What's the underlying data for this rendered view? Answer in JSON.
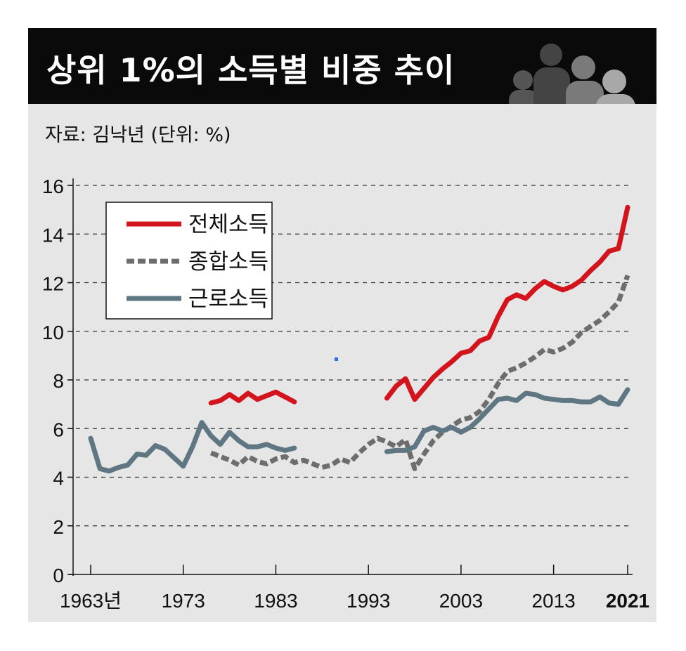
{
  "header": {
    "title": "상위 1%의 소득별 비중 추이",
    "source": "자료: 김낙년 (단위: %)",
    "icon": "people-silhouette-icon"
  },
  "chart_data": {
    "type": "line",
    "ylim": [
      0,
      16
    ],
    "xlim": [
      1963,
      2021
    ],
    "y_ticks": [
      0,
      2,
      4,
      6,
      8,
      10,
      12,
      14,
      16
    ],
    "x_tick_labels": [
      "1963년",
      "1973",
      "1983",
      "1993",
      "2003",
      "2013",
      "2021"
    ],
    "x_tick_values": [
      1963,
      1973,
      1983,
      1993,
      2003,
      2013,
      2021
    ],
    "grid": true,
    "legend_position": "top-left",
    "series": [
      {
        "name": "전체소득",
        "color": "#d4141c",
        "style": "solid",
        "segments": [
          [
            [
              1976,
              7.05
            ],
            [
              1977,
              7.15
            ],
            [
              1978,
              7.4
            ],
            [
              1979,
              7.15
            ],
            [
              1980,
              7.45
            ],
            [
              1981,
              7.2
            ],
            [
              1982,
              7.35
            ],
            [
              1983,
              7.5
            ],
            [
              1984,
              7.3
            ],
            [
              1985,
              7.1
            ]
          ],
          [
            [
              1995,
              7.25
            ],
            [
              1996,
              7.75
            ],
            [
              1997,
              8.05
            ],
            [
              1998,
              7.2
            ],
            [
              1999,
              7.65
            ],
            [
              2000,
              8.1
            ],
            [
              2001,
              8.45
            ],
            [
              2002,
              8.75
            ],
            [
              2003,
              9.1
            ],
            [
              2004,
              9.2
            ],
            [
              2005,
              9.6
            ],
            [
              2006,
              9.75
            ],
            [
              2007,
              10.6
            ],
            [
              2008,
              11.3
            ],
            [
              2009,
              11.5
            ],
            [
              2010,
              11.35
            ],
            [
              2011,
              11.75
            ],
            [
              2012,
              12.05
            ],
            [
              2013,
              11.85
            ],
            [
              2014,
              11.7
            ],
            [
              2015,
              11.85
            ],
            [
              2016,
              12.1
            ],
            [
              2017,
              12.5
            ],
            [
              2018,
              12.85
            ],
            [
              2019,
              13.3
            ],
            [
              2020,
              13.4
            ],
            [
              2021,
              15.1
            ]
          ]
        ]
      },
      {
        "name": "종합소득",
        "color": "#6d6d6d",
        "style": "dashed",
        "segments": [
          [
            [
              1976,
              5.0
            ],
            [
              1977,
              4.85
            ],
            [
              1978,
              4.7
            ],
            [
              1979,
              4.5
            ],
            [
              1980,
              4.85
            ],
            [
              1981,
              4.65
            ],
            [
              1982,
              4.55
            ],
            [
              1983,
              4.75
            ],
            [
              1984,
              4.85
            ],
            [
              1985,
              4.6
            ],
            [
              1986,
              4.7
            ],
            [
              1987,
              4.55
            ],
            [
              1988,
              4.4
            ],
            [
              1989,
              4.5
            ],
            [
              1990,
              4.75
            ],
            [
              1991,
              4.6
            ],
            [
              1992,
              5.0
            ],
            [
              1993,
              5.35
            ],
            [
              1994,
              5.6
            ],
            [
              1995,
              5.45
            ],
            [
              1996,
              5.25
            ],
            [
              1997,
              5.55
            ],
            [
              1998,
              4.35
            ],
            [
              1999,
              4.95
            ],
            [
              2000,
              5.5
            ],
            [
              2001,
              5.85
            ],
            [
              2002,
              6.1
            ],
            [
              2003,
              6.35
            ],
            [
              2004,
              6.45
            ],
            [
              2005,
              6.7
            ],
            [
              2006,
              7.2
            ],
            [
              2007,
              7.85
            ],
            [
              2008,
              8.35
            ],
            [
              2009,
              8.5
            ],
            [
              2010,
              8.7
            ],
            [
              2011,
              8.95
            ],
            [
              2012,
              9.25
            ],
            [
              2013,
              9.15
            ],
            [
              2014,
              9.3
            ],
            [
              2015,
              9.55
            ],
            [
              2016,
              9.95
            ],
            [
              2017,
              10.2
            ],
            [
              2018,
              10.45
            ],
            [
              2019,
              10.8
            ],
            [
              2020,
              11.2
            ],
            [
              2021,
              12.3
            ]
          ]
        ]
      },
      {
        "name": "근로소득",
        "color": "#5f7782",
        "style": "solid",
        "segments": [
          [
            [
              1963,
              5.6
            ],
            [
              1964,
              4.35
            ],
            [
              1965,
              4.25
            ],
            [
              1966,
              4.4
            ],
            [
              1967,
              4.5
            ],
            [
              1968,
              4.95
            ],
            [
              1969,
              4.9
            ],
            [
              1970,
              5.3
            ],
            [
              1971,
              5.15
            ],
            [
              1972,
              4.8
            ],
            [
              1973,
              4.45
            ],
            [
              1974,
              5.25
            ],
            [
              1975,
              6.25
            ],
            [
              1976,
              5.7
            ],
            [
              1977,
              5.35
            ],
            [
              1978,
              5.85
            ],
            [
              1979,
              5.5
            ],
            [
              1980,
              5.25
            ],
            [
              1981,
              5.25
            ],
            [
              1982,
              5.35
            ],
            [
              1983,
              5.2
            ],
            [
              1984,
              5.1
            ],
            [
              1985,
              5.2
            ]
          ],
          [
            [
              1995,
              5.05
            ],
            [
              1996,
              5.1
            ],
            [
              1997,
              5.1
            ],
            [
              1998,
              5.25
            ],
            [
              1999,
              5.9
            ],
            [
              2000,
              6.05
            ],
            [
              2001,
              5.9
            ],
            [
              2002,
              6.05
            ],
            [
              2003,
              5.85
            ],
            [
              2004,
              6.05
            ],
            [
              2005,
              6.4
            ],
            [
              2006,
              6.8
            ],
            [
              2007,
              7.2
            ],
            [
              2008,
              7.25
            ],
            [
              2009,
              7.15
            ],
            [
              2010,
              7.45
            ],
            [
              2011,
              7.4
            ],
            [
              2012,
              7.25
            ],
            [
              2013,
              7.2
            ],
            [
              2014,
              7.15
            ],
            [
              2015,
              7.15
            ],
            [
              2016,
              7.1
            ],
            [
              2017,
              7.1
            ],
            [
              2018,
              7.3
            ],
            [
              2019,
              7.05
            ],
            [
              2020,
              7.0
            ],
            [
              2021,
              7.6
            ]
          ]
        ]
      }
    ]
  }
}
